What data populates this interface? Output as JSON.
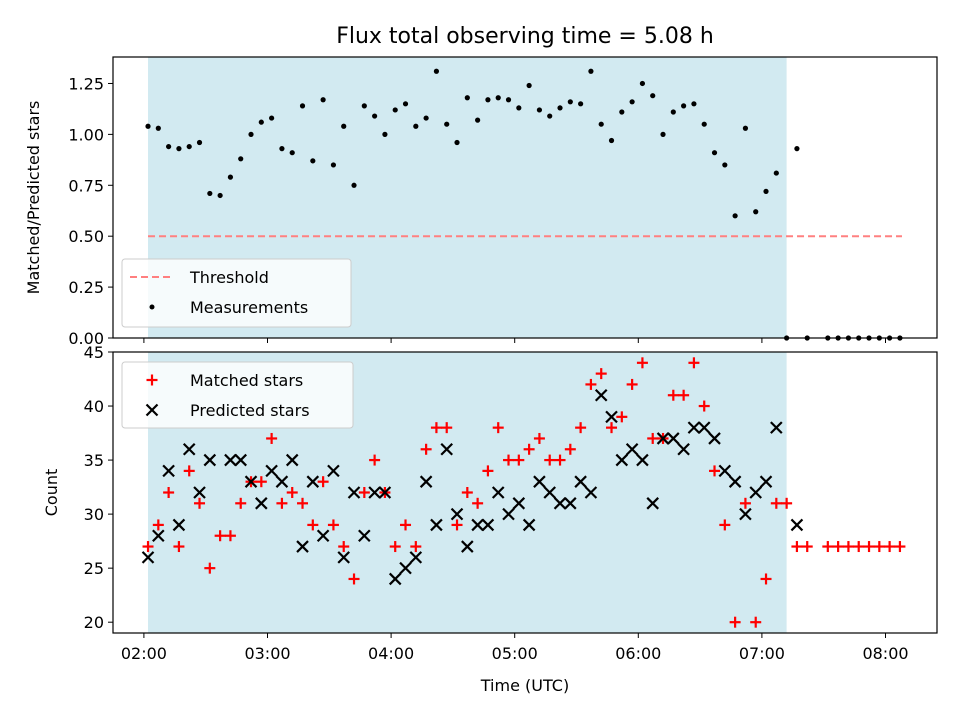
{
  "chart_data": [
    {
      "type": "scatter",
      "title": "Flux total observing time = 5.08 h",
      "ylabel": "Matched/Predicted stars",
      "xlabel": "",
      "xlim": [
        "01:45",
        "08:25"
      ],
      "ylim": [
        0,
        1.38
      ],
      "yticks": [
        "0.00",
        "0.25",
        "0.50",
        "0.75",
        "1.00",
        "1.25"
      ],
      "ytick_values": [
        0,
        0.25,
        0.5,
        0.75,
        1.0,
        1.25
      ],
      "shaded_interval": [
        "02:02",
        "07:12"
      ],
      "shade_color": "#add8e6",
      "grid": false,
      "legend_position": "lower-left",
      "threshold": {
        "name": "Threshold",
        "value": 0.5,
        "x_range": [
          "02:02",
          "08:08"
        ],
        "color": "#ff8080",
        "style": "dashed"
      },
      "series": [
        {
          "name": "Measurements",
          "color": "#000000",
          "marker": "dot",
          "points": [
            [
              "02:02",
              1.04
            ],
            [
              "02:07",
              1.03
            ],
            [
              "02:12",
              0.94
            ],
            [
              "02:17",
              0.93
            ],
            [
              "02:22",
              0.94
            ],
            [
              "02:27",
              0.96
            ],
            [
              "02:32",
              0.71
            ],
            [
              "02:37",
              0.7
            ],
            [
              "02:42",
              0.79
            ],
            [
              "02:47",
              0.88
            ],
            [
              "02:52",
              1.0
            ],
            [
              "02:57",
              1.06
            ],
            [
              "03:02",
              1.08
            ],
            [
              "03:07",
              0.93
            ],
            [
              "03:12",
              0.91
            ],
            [
              "03:17",
              1.14
            ],
            [
              "03:22",
              0.87
            ],
            [
              "03:27",
              1.17
            ],
            [
              "03:32",
              0.85
            ],
            [
              "03:37",
              1.04
            ],
            [
              "03:42",
              0.75
            ],
            [
              "03:47",
              1.14
            ],
            [
              "03:52",
              1.09
            ],
            [
              "03:57",
              1.0
            ],
            [
              "04:02",
              1.12
            ],
            [
              "04:07",
              1.15
            ],
            [
              "04:12",
              1.04
            ],
            [
              "04:17",
              1.08
            ],
            [
              "04:22",
              1.31
            ],
            [
              "04:27",
              1.05
            ],
            [
              "04:32",
              0.96
            ],
            [
              "04:37",
              1.18
            ],
            [
              "04:42",
              1.07
            ],
            [
              "04:47",
              1.17
            ],
            [
              "04:52",
              1.18
            ],
            [
              "04:57",
              1.17
            ],
            [
              "05:02",
              1.13
            ],
            [
              "05:07",
              1.24
            ],
            [
              "05:12",
              1.12
            ],
            [
              "05:17",
              1.09
            ],
            [
              "05:22",
              1.13
            ],
            [
              "05:27",
              1.16
            ],
            [
              "05:32",
              1.15
            ],
            [
              "05:37",
              1.31
            ],
            [
              "05:42",
              1.05
            ],
            [
              "05:47",
              0.97
            ],
            [
              "05:52",
              1.11
            ],
            [
              "05:57",
              1.16
            ],
            [
              "06:02",
              1.25
            ],
            [
              "06:07",
              1.19
            ],
            [
              "06:12",
              1.0
            ],
            [
              "06:17",
              1.11
            ],
            [
              "06:22",
              1.14
            ],
            [
              "06:27",
              1.15
            ],
            [
              "06:32",
              1.05
            ],
            [
              "06:37",
              0.91
            ],
            [
              "06:42",
              0.85
            ],
            [
              "06:47",
              0.6
            ],
            [
              "06:52",
              1.03
            ],
            [
              "06:57",
              0.62
            ],
            [
              "07:02",
              0.72
            ],
            [
              "07:07",
              0.81
            ],
            [
              "07:12",
              0.0
            ],
            [
              "07:17",
              0.93
            ],
            [
              "07:22",
              0.0
            ],
            [
              "07:32",
              0.0
            ],
            [
              "07:37",
              0.0
            ],
            [
              "07:42",
              0.0
            ],
            [
              "07:47",
              0.0
            ],
            [
              "07:52",
              0.0
            ],
            [
              "07:57",
              0.0
            ],
            [
              "08:02",
              0.0
            ],
            [
              "08:07",
              0.0
            ]
          ]
        }
      ]
    },
    {
      "type": "scatter",
      "title": "",
      "xlabel": "Time (UTC)",
      "ylabel": "Count",
      "xlim": [
        "01:45",
        "08:25"
      ],
      "ylim": [
        19,
        45
      ],
      "xticks": [
        "02:00",
        "03:00",
        "04:00",
        "05:00",
        "06:00",
        "07:00",
        "08:00"
      ],
      "yticks": [
        "20",
        "25",
        "30",
        "35",
        "40",
        "45"
      ],
      "ytick_values": [
        20,
        25,
        30,
        35,
        40,
        45
      ],
      "shaded_interval": [
        "02:02",
        "07:12"
      ],
      "shade_color": "#add8e6",
      "grid": false,
      "legend_position": "upper-left",
      "series": [
        {
          "name": "Matched stars",
          "color": "#ff0000",
          "marker": "plus",
          "points": [
            [
              "02:02",
              27
            ],
            [
              "02:07",
              29
            ],
            [
              "02:12",
              32
            ],
            [
              "02:17",
              27
            ],
            [
              "02:22",
              34
            ],
            [
              "02:27",
              31
            ],
            [
              "02:32",
              25
            ],
            [
              "02:37",
              28
            ],
            [
              "02:42",
              28
            ],
            [
              "02:47",
              31
            ],
            [
              "02:52",
              33
            ],
            [
              "02:57",
              33
            ],
            [
              "03:02",
              37
            ],
            [
              "03:07",
              31
            ],
            [
              "03:12",
              32
            ],
            [
              "03:17",
              31
            ],
            [
              "03:22",
              29
            ],
            [
              "03:27",
              33
            ],
            [
              "03:32",
              29
            ],
            [
              "03:37",
              27
            ],
            [
              "03:42",
              24
            ],
            [
              "03:47",
              32
            ],
            [
              "03:52",
              35
            ],
            [
              "03:57",
              32
            ],
            [
              "04:02",
              27
            ],
            [
              "04:07",
              29
            ],
            [
              "04:12",
              27
            ],
            [
              "04:17",
              36
            ],
            [
              "04:22",
              38
            ],
            [
              "04:27",
              38
            ],
            [
              "04:32",
              29
            ],
            [
              "04:37",
              32
            ],
            [
              "04:42",
              31
            ],
            [
              "04:47",
              34
            ],
            [
              "04:52",
              38
            ],
            [
              "04:57",
              35
            ],
            [
              "05:02",
              35
            ],
            [
              "05:07",
              36
            ],
            [
              "05:12",
              37
            ],
            [
              "05:17",
              35
            ],
            [
              "05:22",
              35
            ],
            [
              "05:27",
              36
            ],
            [
              "05:32",
              38
            ],
            [
              "05:37",
              42
            ],
            [
              "05:42",
              43
            ],
            [
              "05:47",
              38
            ],
            [
              "05:52",
              39
            ],
            [
              "05:57",
              42
            ],
            [
              "06:02",
              44
            ],
            [
              "06:07",
              37
            ],
            [
              "06:12",
              37
            ],
            [
              "06:17",
              41
            ],
            [
              "06:22",
              41
            ],
            [
              "06:27",
              44
            ],
            [
              "06:32",
              40
            ],
            [
              "06:37",
              34
            ],
            [
              "06:42",
              29
            ],
            [
              "06:47",
              20
            ],
            [
              "06:52",
              31
            ],
            [
              "06:57",
              20
            ],
            [
              "07:02",
              24
            ],
            [
              "07:07",
              31
            ],
            [
              "07:12",
              31
            ],
            [
              "07:17",
              27
            ],
            [
              "07:22",
              27
            ],
            [
              "07:32",
              27
            ],
            [
              "07:37",
              27
            ],
            [
              "07:42",
              27
            ],
            [
              "07:47",
              27
            ],
            [
              "07:52",
              27
            ],
            [
              "07:57",
              27
            ],
            [
              "08:02",
              27
            ],
            [
              "08:07",
              27
            ]
          ]
        },
        {
          "name": "Predicted stars",
          "color": "#000000",
          "marker": "x",
          "points": [
            [
              "02:02",
              26
            ],
            [
              "02:07",
              28
            ],
            [
              "02:12",
              34
            ],
            [
              "02:17",
              29
            ],
            [
              "02:22",
              36
            ],
            [
              "02:27",
              32
            ],
            [
              "02:32",
              35
            ],
            [
              "02:42",
              35
            ],
            [
              "02:47",
              35
            ],
            [
              "02:52",
              33
            ],
            [
              "02:57",
              31
            ],
            [
              "03:02",
              34
            ],
            [
              "03:07",
              33
            ],
            [
              "03:12",
              35
            ],
            [
              "03:17",
              27
            ],
            [
              "03:22",
              33
            ],
            [
              "03:27",
              28
            ],
            [
              "03:32",
              34
            ],
            [
              "03:37",
              26
            ],
            [
              "03:42",
              32
            ],
            [
              "03:47",
              28
            ],
            [
              "03:52",
              32
            ],
            [
              "03:57",
              32
            ],
            [
              "04:02",
              24
            ],
            [
              "04:07",
              25
            ],
            [
              "04:12",
              26
            ],
            [
              "04:17",
              33
            ],
            [
              "04:22",
              29
            ],
            [
              "04:27",
              36
            ],
            [
              "04:32",
              30
            ],
            [
              "04:37",
              27
            ],
            [
              "04:42",
              29
            ],
            [
              "04:47",
              29
            ],
            [
              "04:52",
              32
            ],
            [
              "04:57",
              30
            ],
            [
              "05:02",
              31
            ],
            [
              "05:07",
              29
            ],
            [
              "05:12",
              33
            ],
            [
              "05:17",
              32
            ],
            [
              "05:22",
              31
            ],
            [
              "05:27",
              31
            ],
            [
              "05:32",
              33
            ],
            [
              "05:37",
              32
            ],
            [
              "05:42",
              41
            ],
            [
              "05:47",
              39
            ],
            [
              "05:52",
              35
            ],
            [
              "05:57",
              36
            ],
            [
              "06:02",
              35
            ],
            [
              "06:07",
              31
            ],
            [
              "06:12",
              37
            ],
            [
              "06:17",
              37
            ],
            [
              "06:22",
              36
            ],
            [
              "06:27",
              38
            ],
            [
              "06:32",
              38
            ],
            [
              "06:37",
              37
            ],
            [
              "06:42",
              34
            ],
            [
              "06:47",
              33
            ],
            [
              "06:52",
              30
            ],
            [
              "06:57",
              32
            ],
            [
              "07:02",
              33
            ],
            [
              "07:07",
              38
            ],
            [
              "07:17",
              29
            ]
          ]
        }
      ]
    }
  ]
}
